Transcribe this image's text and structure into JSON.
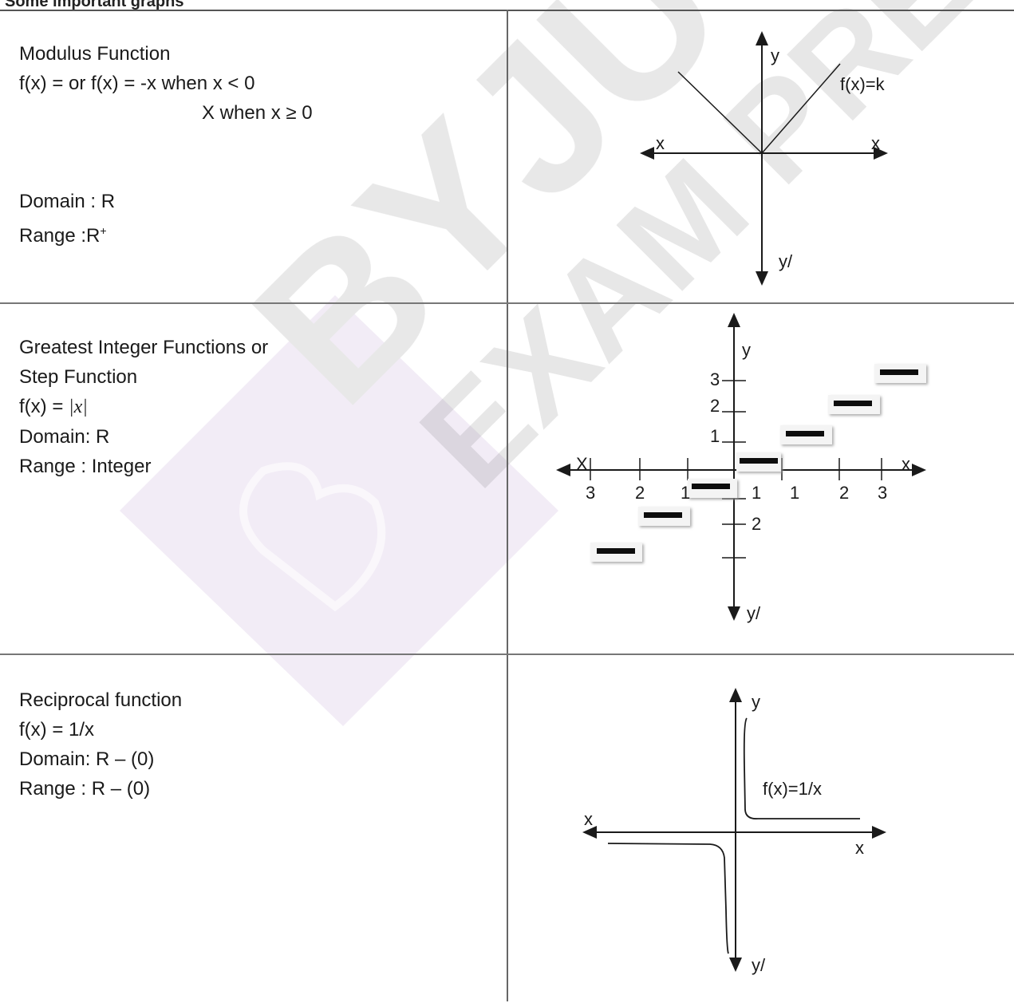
{
  "page_title": "Some important graphs",
  "rows": [
    {
      "title": "Modulus Function",
      "definition_line1": "f(x) =  or f(x) = -x when x < 0",
      "definition_line2": "X when x ≥ 0",
      "domain": "Domain : R",
      "range_label": "Range    :R",
      "range_sup": "+",
      "graph_labels": {
        "y": "y",
        "y_prime": "y/",
        "x_left": "x",
        "x_right": "x",
        "curve": "f(x)=k"
      }
    },
    {
      "title_line1": "Greatest Integer Functions or",
      "title_line2": "Step Function",
      "definition_prefix": "f(x) =  ",
      "definition_math": "|x|",
      "domain": "Domain: R",
      "range": "Range : Integer",
      "graph_labels": {
        "y": "y",
        "y_prime": "y/",
        "x_left": "X",
        "x_right": "x",
        "y_ticks": [
          "3",
          "2",
          "1"
        ],
        "x_ticks_left": [
          "3",
          "2",
          "1"
        ],
        "x_ticks_right": [
          "1",
          "1",
          "2",
          "3"
        ],
        "y_tick_below": "2"
      }
    },
    {
      "title": "Reciprocal function",
      "definition": "f(x) = 1/x",
      "domain": "Domain: R – (0)",
      "range": "Range   : R – (0)",
      "graph_labels": {
        "y": "y",
        "y_prime": "y/",
        "x_left": "x",
        "x_right": "x",
        "curve": "f(x)=1/x"
      }
    }
  ]
}
